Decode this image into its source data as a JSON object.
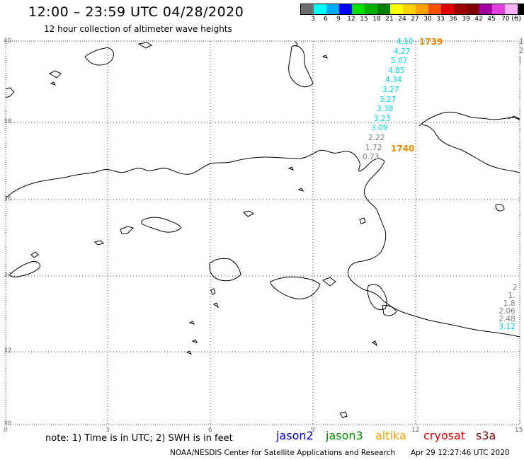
{
  "title": "12:00 – 23:59 UTC 04/28/2020",
  "subtitle": "12 hour collection of altimeter wave heights",
  "colorbar": {
    "colors": [
      "#6e6e6e",
      "#00ffff",
      "#00aaff",
      "#0000ff",
      "#00e000",
      "#00b000",
      "#008000",
      "#ffff00",
      "#ffd000",
      "#ffa000",
      "#ff5000",
      "#e00000",
      "#a00000",
      "#800000",
      "#a000a0",
      "#e040e0",
      "#ffb0ff",
      "#000000"
    ],
    "labels": [
      "3",
      "6",
      "9",
      "12",
      "15",
      "18",
      "21",
      "24",
      "27",
      "30",
      "33",
      "36",
      "39",
      "42",
      "45",
      "70 (ft)"
    ]
  },
  "axes": {
    "lat_labels": [
      "40",
      "38",
      "36",
      "34",
      "32",
      "30"
    ],
    "lon_labels": [
      "0",
      "3",
      "6",
      "9",
      "12",
      "15"
    ]
  },
  "track_main": {
    "values": [
      "4.10",
      "4.27",
      "5.07",
      "4.85",
      "4.34",
      "3.27",
      "3.27",
      "3.38",
      "3.23",
      "3.09",
      "2.22",
      "1.72",
      "0.73"
    ],
    "colors": [
      "#00d8e8",
      "#00d8e8",
      "#00d8e8",
      "#00d8e8",
      "#00d8e8",
      "#00d8e8",
      "#00d8e8",
      "#00d8e8",
      "#00d8e8",
      "#00d8e8",
      "#808080",
      "#808080",
      "#808080"
    ],
    "time_top": "1739",
    "time_bottom": "1740"
  },
  "track_right_bottom": {
    "values": [
      "2",
      "1.",
      "1.8",
      "2.06",
      "2.48",
      "3.12"
    ],
    "colors": [
      "#808080",
      "#808080",
      "#808080",
      "#808080",
      "#808080",
      "#00d8e8"
    ]
  },
  "track_right_top": {
    "values": [
      "1.",
      "2.",
      "("
    ],
    "colors": [
      "#808080",
      "#808080",
      "#808080"
    ]
  },
  "note": "note: 1) Time is in UTC; 2) SWH is in feet",
  "satellites": [
    {
      "name": "jason2",
      "color": "#0000cc"
    },
    {
      "name": "jason3",
      "color": "#009000"
    },
    {
      "name": "altika",
      "color": "#ffa000"
    },
    {
      "name": "cryosat",
      "color": "#e00000"
    },
    {
      "name": "s3a",
      "color": "#800000"
    }
  ],
  "credit": "NOAA/NESDIS Center for Satellite Applications and Research",
  "timestamp": "Apr 29 12:27:46 UTC 2020"
}
